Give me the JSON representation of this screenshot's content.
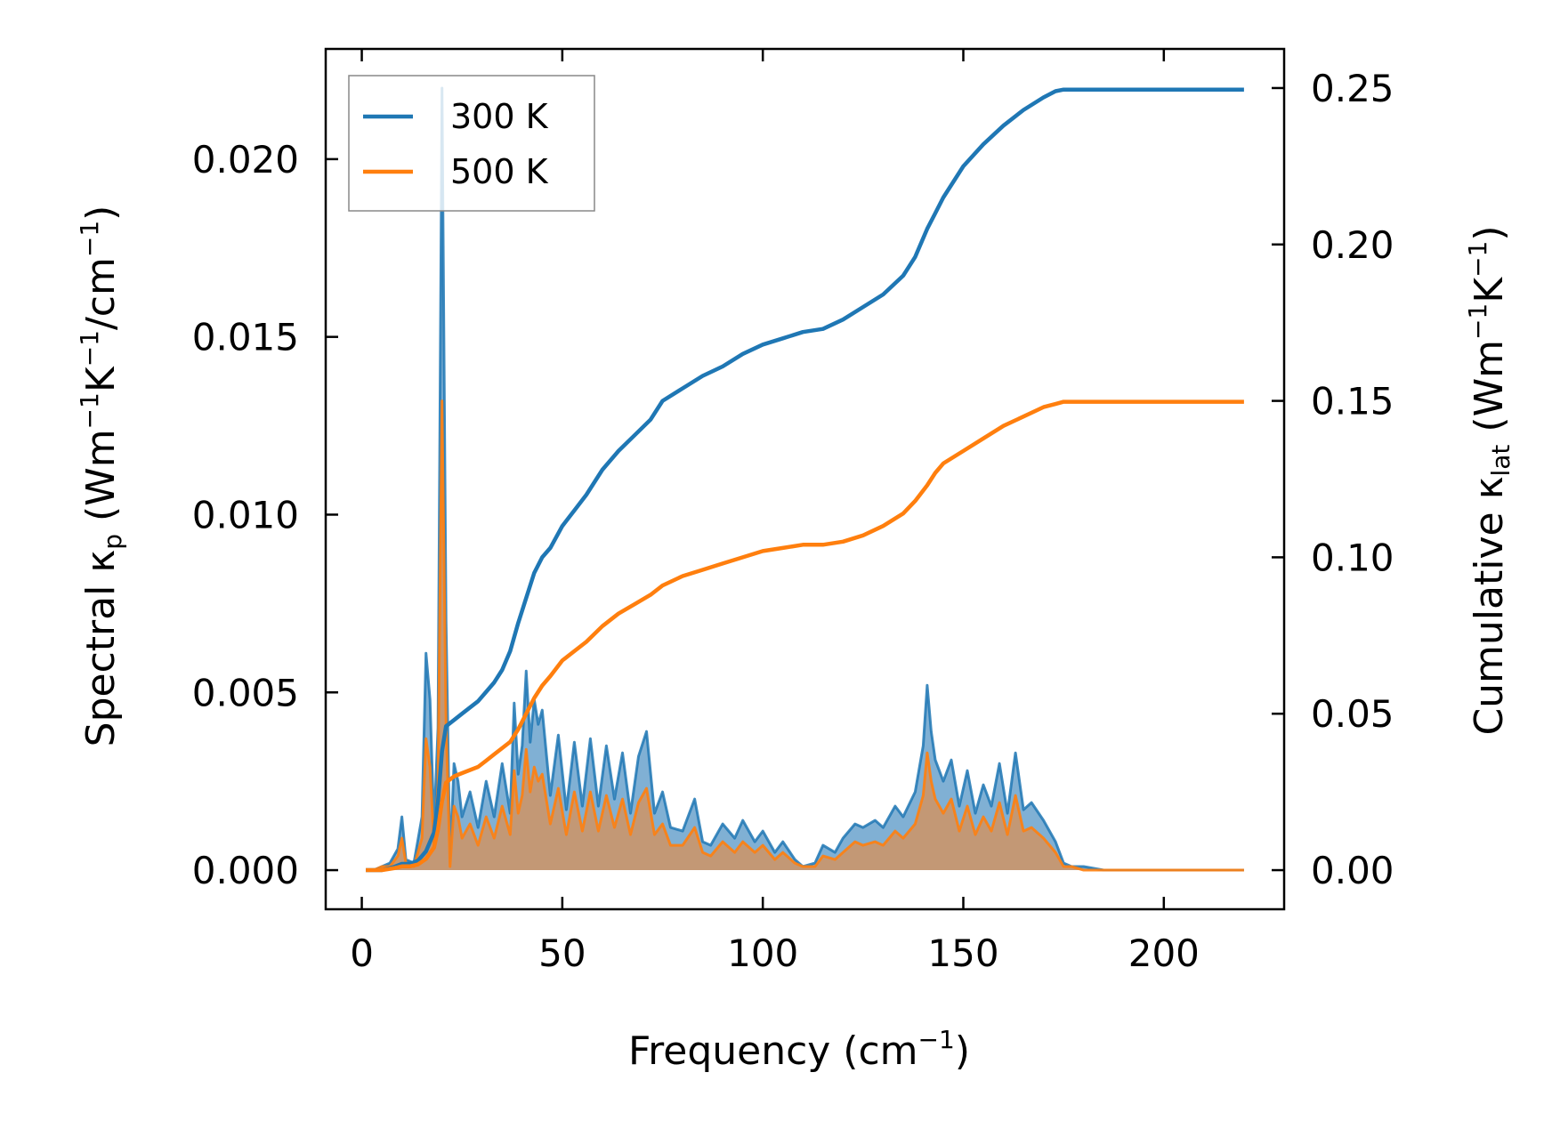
{
  "chart_data": {
    "type": "line",
    "title": "",
    "xlabel": {
      "main": "Frequency (cm",
      "sup": "−1",
      "tail": ")"
    },
    "ylabel_left": {
      "a": "Spectral κ",
      "a_sub": "p",
      "b": " (Wm",
      "b_sup": "−1",
      "c": "K",
      "c_sup": "−1",
      "d": "/cm",
      "d_sup": "−1",
      "e": ")"
    },
    "ylabel_right": {
      "a": "Cumulative κ",
      "a_sub": "lat",
      "b": " (Wm",
      "b_sup": "−1",
      "c": "K",
      "c_sup": "−1",
      "d": ")"
    },
    "xlim": [
      -9,
      230
    ],
    "ylim_left": [
      -0.0011,
      0.0231
    ],
    "ylim_right": [
      -0.0125,
      0.2625
    ],
    "xticks": [
      0,
      50,
      100,
      150,
      200
    ],
    "xtick_labels": [
      "0",
      "50",
      "100",
      "150",
      "200"
    ],
    "yticks_left": [
      0,
      0.005,
      0.01,
      0.015,
      0.02
    ],
    "ytick_labels_left": [
      "0.000",
      "0.005",
      "0.010",
      "0.015",
      "0.020"
    ],
    "yticks_right": [
      0,
      0.05,
      0.1,
      0.15,
      0.2,
      0.25
    ],
    "ytick_labels_right": [
      "0.00",
      "0.05",
      "0.10",
      "0.15",
      "0.20",
      "0.25"
    ],
    "legend": {
      "position": "upper-left",
      "entries": [
        "300 K",
        "500 K"
      ]
    },
    "colors": {
      "t300": "#1f77b4",
      "t500": "#ff7f0e",
      "fill500": "#c9966c",
      "fill300": "#6aa2cc"
    },
    "spectral_x": [
      1,
      3,
      5,
      7,
      9,
      10,
      11,
      13,
      15,
      16,
      17,
      18,
      19,
      20,
      21,
      22,
      23,
      24,
      25,
      27,
      29,
      31,
      33,
      35,
      37,
      38,
      39,
      40,
      41,
      42,
      43,
      44,
      45,
      47,
      49,
      51,
      53,
      55,
      57,
      59,
      61,
      63,
      65,
      67,
      69,
      71,
      73,
      75,
      77,
      80,
      83,
      85,
      87,
      90,
      93,
      95,
      98,
      100,
      103,
      105,
      108,
      110,
      113,
      115,
      118,
      120,
      123,
      125,
      128,
      130,
      133,
      135,
      138,
      140,
      141,
      142,
      143,
      145,
      147,
      149,
      151,
      153,
      155,
      157,
      159,
      161,
      163,
      165,
      167,
      170,
      173,
      175,
      177,
      180,
      185,
      190,
      200,
      210,
      220
    ],
    "series": [
      {
        "name": "300 K",
        "spectral": [
          0,
          0,
          0.0001,
          0.0002,
          0.0006,
          0.0015,
          0.0003,
          0.0002,
          0.0015,
          0.0061,
          0.0048,
          0.0012,
          0.004,
          0.022,
          0.007,
          0.0002,
          0.003,
          0.0025,
          0.0015,
          0.0022,
          0.0012,
          0.0025,
          0.0015,
          0.003,
          0.0016,
          0.0047,
          0.0027,
          0.0035,
          0.0056,
          0.0036,
          0.0048,
          0.0041,
          0.0045,
          0.0021,
          0.0038,
          0.0017,
          0.0036,
          0.0018,
          0.0037,
          0.0018,
          0.0035,
          0.002,
          0.0033,
          0.0016,
          0.0032,
          0.0039,
          0.0016,
          0.0022,
          0.0012,
          0.0011,
          0.002,
          0.0008,
          0.0007,
          0.0013,
          0.0009,
          0.0014,
          0.0008,
          0.0011,
          0.0005,
          0.0008,
          0.0003,
          0.0001,
          0.0002,
          0.0007,
          0.0005,
          0.0009,
          0.0013,
          0.0012,
          0.0014,
          0.0012,
          0.0018,
          0.0015,
          0.0022,
          0.0035,
          0.0052,
          0.0039,
          0.0031,
          0.0025,
          0.0031,
          0.0018,
          0.0028,
          0.0016,
          0.0024,
          0.0018,
          0.003,
          0.0016,
          0.0033,
          0.0017,
          0.0019,
          0.0014,
          0.0008,
          0.0002,
          0.0001,
          0.0001,
          0,
          0,
          0,
          0,
          0
        ],
        "cumulative_x": [
          1,
          3,
          5,
          8,
          10,
          12,
          14,
          16,
          18,
          19,
          20,
          21,
          22,
          23,
          25,
          27,
          29,
          31,
          33,
          35,
          37,
          39,
          41,
          43,
          45,
          47,
          50,
          53,
          56,
          60,
          64,
          68,
          72,
          75,
          80,
          85,
          90,
          95,
          100,
          105,
          110,
          115,
          120,
          125,
          130,
          135,
          138,
          141,
          143,
          145,
          150,
          155,
          160,
          165,
          170,
          173,
          175,
          180,
          190,
          200,
          210,
          220
        ],
        "cumulative": [
          0,
          0,
          0,
          0.001,
          0.002,
          0.002,
          0.003,
          0.006,
          0.012,
          0.022,
          0.038,
          0.046,
          0.047,
          0.048,
          0.05,
          0.052,
          0.054,
          0.057,
          0.06,
          0.064,
          0.07,
          0.079,
          0.087,
          0.095,
          0.1,
          0.103,
          0.11,
          0.115,
          0.12,
          0.128,
          0.134,
          0.139,
          0.144,
          0.15,
          0.154,
          0.158,
          0.161,
          0.165,
          0.168,
          0.17,
          0.172,
          0.173,
          0.176,
          0.18,
          0.184,
          0.19,
          0.196,
          0.205,
          0.21,
          0.215,
          0.225,
          0.232,
          0.238,
          0.243,
          0.247,
          0.249,
          0.2495,
          0.2495,
          0.2495,
          0.2495,
          0.2495,
          0.2495
        ]
      },
      {
        "name": "500 K",
        "spectral": [
          0,
          0,
          0.0001,
          0.0001,
          0.0004,
          0.0009,
          0.0002,
          0.0001,
          0.0009,
          0.0037,
          0.0029,
          0.0007,
          0.0024,
          0.0132,
          0.0042,
          0.0001,
          0.0018,
          0.0015,
          0.0009,
          0.0013,
          0.0007,
          0.0015,
          0.0009,
          0.0018,
          0.001,
          0.0028,
          0.0016,
          0.0021,
          0.0034,
          0.0022,
          0.0029,
          0.0025,
          0.0027,
          0.0013,
          0.0023,
          0.001,
          0.0022,
          0.0011,
          0.0022,
          0.0011,
          0.0021,
          0.0012,
          0.002,
          0.001,
          0.0019,
          0.0023,
          0.001,
          0.0013,
          0.0007,
          0.0007,
          0.0012,
          0.0005,
          0.0004,
          0.0008,
          0.0005,
          0.0008,
          0.0005,
          0.0007,
          0.0003,
          0.0005,
          0.0002,
          0.0001,
          0.0001,
          0.0004,
          0.0003,
          0.0005,
          0.0008,
          0.0007,
          0.0008,
          0.0007,
          0.0011,
          0.0009,
          0.0013,
          0.0021,
          0.0033,
          0.0025,
          0.002,
          0.0016,
          0.002,
          0.0011,
          0.0018,
          0.001,
          0.0015,
          0.0011,
          0.0019,
          0.001,
          0.0021,
          0.0011,
          0.0012,
          0.0009,
          0.0005,
          0.0001,
          0.0001,
          0,
          0,
          0,
          0,
          0,
          0
        ],
        "cumulative_x": [
          1,
          3,
          5,
          8,
          10,
          12,
          14,
          16,
          18,
          19,
          20,
          21,
          22,
          23,
          25,
          27,
          29,
          31,
          33,
          35,
          37,
          39,
          41,
          43,
          45,
          47,
          50,
          53,
          56,
          60,
          64,
          68,
          72,
          75,
          80,
          85,
          90,
          95,
          100,
          105,
          110,
          115,
          120,
          125,
          130,
          135,
          138,
          141,
          143,
          145,
          150,
          155,
          160,
          165,
          170,
          173,
          175,
          180,
          190,
          200,
          210,
          220
        ],
        "cumulative": [
          0,
          0,
          0,
          0.0006,
          0.0012,
          0.0012,
          0.0018,
          0.0036,
          0.0072,
          0.013,
          0.022,
          0.028,
          0.029,
          0.03,
          0.031,
          0.032,
          0.033,
          0.035,
          0.037,
          0.039,
          0.041,
          0.045,
          0.05,
          0.055,
          0.059,
          0.062,
          0.067,
          0.07,
          0.073,
          0.078,
          0.082,
          0.085,
          0.088,
          0.091,
          0.094,
          0.096,
          0.098,
          0.1,
          0.102,
          0.103,
          0.104,
          0.104,
          0.105,
          0.107,
          0.11,
          0.114,
          0.118,
          0.123,
          0.127,
          0.13,
          0.134,
          0.138,
          0.142,
          0.145,
          0.148,
          0.149,
          0.1497,
          0.1497,
          0.1497,
          0.1497,
          0.1497,
          0.1497
        ]
      }
    ]
  }
}
